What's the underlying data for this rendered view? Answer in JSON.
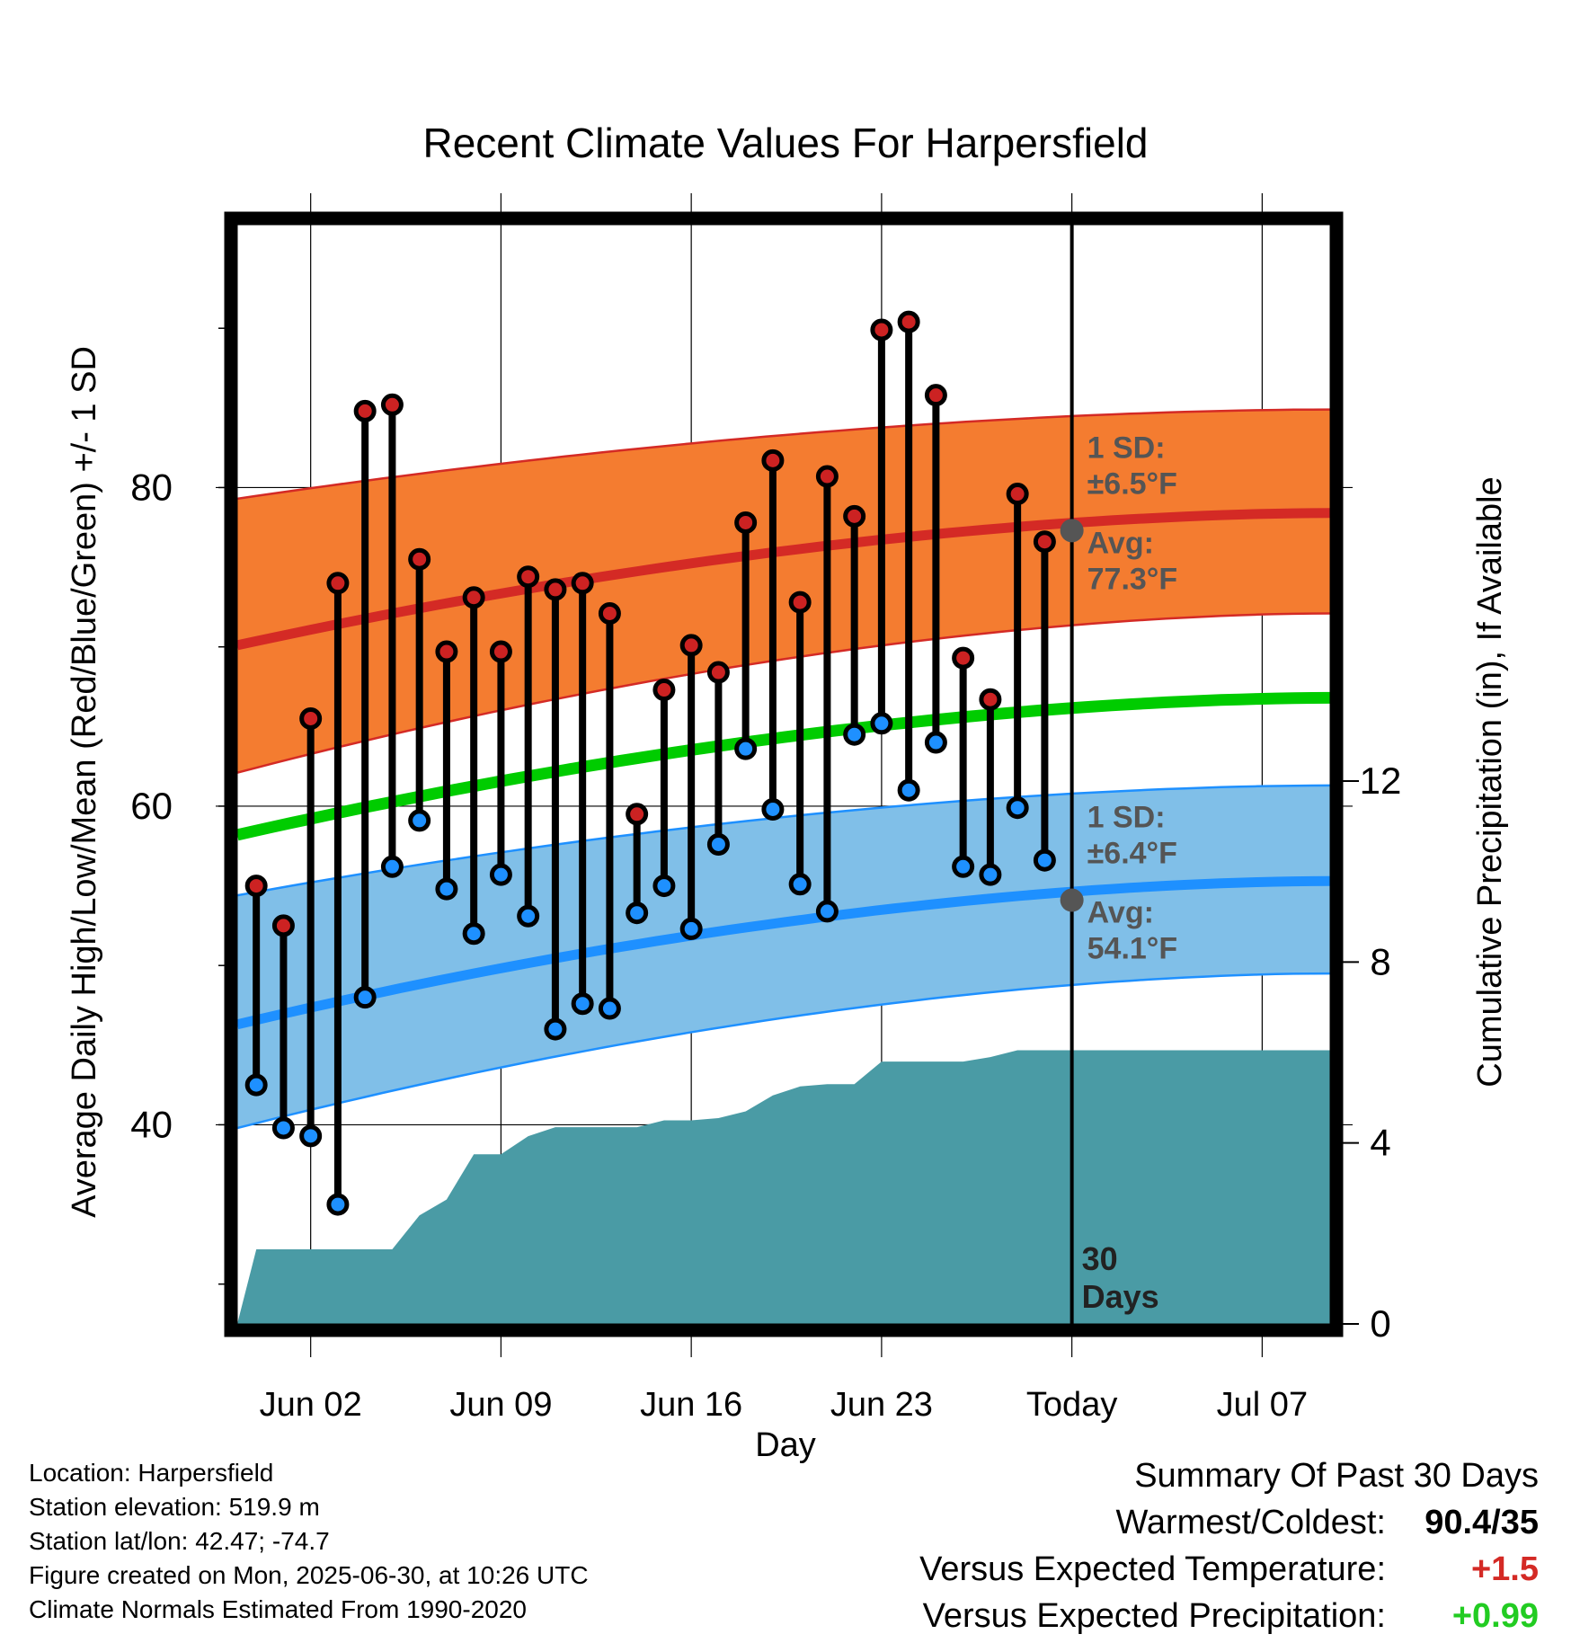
{
  "chart_data": {
    "type": "line",
    "title": "Recent Climate Values For Harpersfield",
    "xlabel": "Day",
    "ylabel": "Average Daily High/Low/Mean (Red/Blue/Green) +/- 1 SD",
    "y2label": "Cumulative Precipitation (in), If Available",
    "x_tick_labels": [
      {
        "day": 2,
        "label": "Jun 02"
      },
      {
        "day": 9,
        "label": "Jun 09"
      },
      {
        "day": 16,
        "label": "Jun 16"
      },
      {
        "day": 23,
        "label": "Jun 23"
      },
      {
        "day": 30,
        "label": "Today"
      },
      {
        "day": 37,
        "label": "Jul 07"
      }
    ],
    "y_ticks": [
      40,
      60,
      80
    ],
    "y2_ticks": [
      0,
      4,
      8,
      12
    ],
    "xlim": [
      -0.7,
      39.5
    ],
    "ylim": [
      27.5,
      96.5
    ],
    "y2lim": [
      0,
      24.3
    ],
    "grid": true,
    "today_day": 30,
    "days_marker_label": [
      "30",
      "Days"
    ],
    "normals": {
      "high_mean": [
        70.1,
        78.4
      ],
      "high_upper": [
        79.3,
        84.9
      ],
      "high_lower": [
        62.1,
        72.1
      ],
      "low_mean": [
        46.3,
        55.3
      ],
      "low_upper": [
        54.4,
        61.3
      ],
      "low_lower": [
        39.8,
        49.5
      ],
      "mean": [
        58.2,
        66.8
      ]
    },
    "annotations": {
      "high": {
        "sd_title": "1 SD:",
        "sd_value": "±6.5°F",
        "avg_title": "Avg:",
        "avg_value": "77.3°F",
        "avg_y": 77.3
      },
      "low": {
        "sd_title": "1 SD:",
        "sd_value": "±6.4°F",
        "avg_title": "Avg:",
        "avg_value": "54.1°F",
        "avg_y": 54.1
      }
    },
    "daily": {
      "days": [
        0,
        1,
        2,
        3,
        4,
        5,
        6,
        7,
        8,
        9,
        10,
        11,
        12,
        13,
        14,
        15,
        16,
        17,
        18,
        19,
        20,
        21,
        22,
        23,
        24,
        25,
        26,
        27,
        28,
        29
      ],
      "highs": [
        55,
        52.5,
        65.5,
        74,
        84.8,
        85.2,
        75.5,
        69.7,
        73.1,
        69.7,
        74.4,
        73.6,
        74,
        72.1,
        59.5,
        67.3,
        70.1,
        68.4,
        77.8,
        81.7,
        72.8,
        80.7,
        78.2,
        89.9,
        90.4,
        85.8,
        69.3,
        66.7,
        79.6,
        76.6
      ],
      "lows": [
        42.5,
        39.8,
        39.3,
        35,
        48,
        56.2,
        59.1,
        54.8,
        52,
        55.7,
        53.1,
        46,
        47.6,
        47.3,
        53.3,
        55,
        52.3,
        57.6,
        63.6,
        59.8,
        55.1,
        53.4,
        64.5,
        65.2,
        61,
        64,
        56.2,
        55.7,
        59.9,
        56.6
      ]
    },
    "precip": {
      "x": [
        -0.7,
        0,
        2,
        3,
        4,
        5,
        6,
        7,
        8,
        9,
        10,
        11,
        12,
        13,
        14,
        15,
        16,
        17,
        18,
        19,
        20,
        21,
        22,
        23,
        24,
        25,
        26,
        27,
        28,
        29,
        39.5
      ],
      "y": [
        0,
        1.65,
        1.65,
        1.65,
        1.65,
        1.65,
        2.4,
        2.75,
        3.75,
        3.75,
        4.15,
        4.35,
        4.35,
        4.35,
        4.35,
        4.5,
        4.5,
        4.55,
        4.7,
        5.05,
        5.25,
        5.3,
        5.3,
        5.8,
        5.8,
        5.8,
        5.8,
        5.9,
        6.05,
        6.05,
        6.05
      ]
    },
    "colors": {
      "high_band": "#f47c30",
      "high_line": "#d42a25",
      "low_band": "#80bfe8",
      "low_line": "#1e90ff",
      "mean_line": "#00cc00",
      "precip": "#4a9ba5",
      "high_dot": "#cc2222",
      "low_dot": "#1e90ff",
      "annotation_text": "#555555"
    }
  },
  "info": {
    "location": "Location: Harpersfield",
    "elevation": "Station elevation: 519.9 m",
    "latlon": "Station lat/lon: 42.47; -74.7",
    "created": "Figure created on Mon, 2025-06-30, at 10:26 UTC",
    "normals": "Climate Normals Estimated From 1990-2020"
  },
  "summary": {
    "title": "Summary Of Past 30 Days",
    "warmest_label": "Warmest/Coldest:",
    "warmest_value": "90.4/35",
    "temp_label": "Versus Expected Temperature:",
    "temp_value": "+1.5",
    "temp_color": "#d42a25",
    "precip_label": "Versus Expected Precipitation:",
    "precip_value": "+0.99",
    "precip_color": "#22cc22"
  }
}
